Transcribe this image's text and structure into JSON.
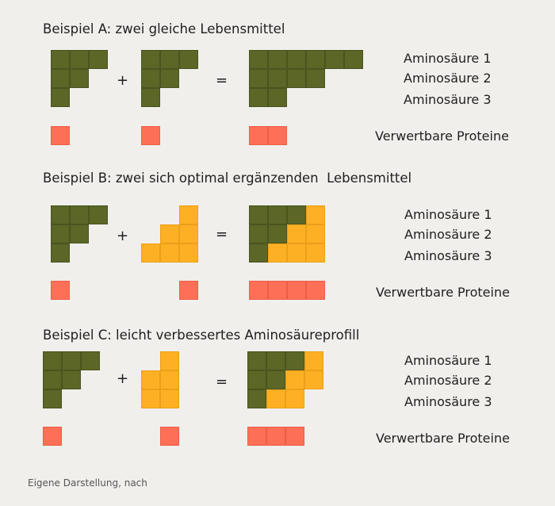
{
  "colors": {
    "amino": "#5b6627",
    "complement": "#fdb023",
    "protein": "#fd6f56",
    "background": "#f1efec"
  },
  "footer": "Eigene Darstellung, nach",
  "examples": [
    {
      "id": "a",
      "title": "Beispiel A: zwei gleiche Lebensmittel",
      "plus": "+",
      "equals": "=",
      "labels": [
        "Aminosäure 1",
        "Aminosäure 2",
        "Aminosäure 3"
      ],
      "protein_label": "Verwertbare Proteine"
    },
    {
      "id": "b",
      "title": "Beispiel B: zwei sich optimal ergänzenden  Lebensmittel",
      "plus": "+",
      "equals": "=",
      "labels": [
        "Aminosäure 1",
        "Aminosäure 2",
        "Aminosäure 3"
      ],
      "protein_label": "Verwertbare Proteine"
    },
    {
      "id": "c",
      "title": "Beispiel C: leicht verbessertes Aminosäureprofill",
      "plus": "+",
      "equals": "=",
      "labels": [
        "Aminosäure 1",
        "Aminosäure 2",
        "Aminosäure 3"
      ],
      "protein_label": "Verwertbare Proteine"
    }
  ]
}
